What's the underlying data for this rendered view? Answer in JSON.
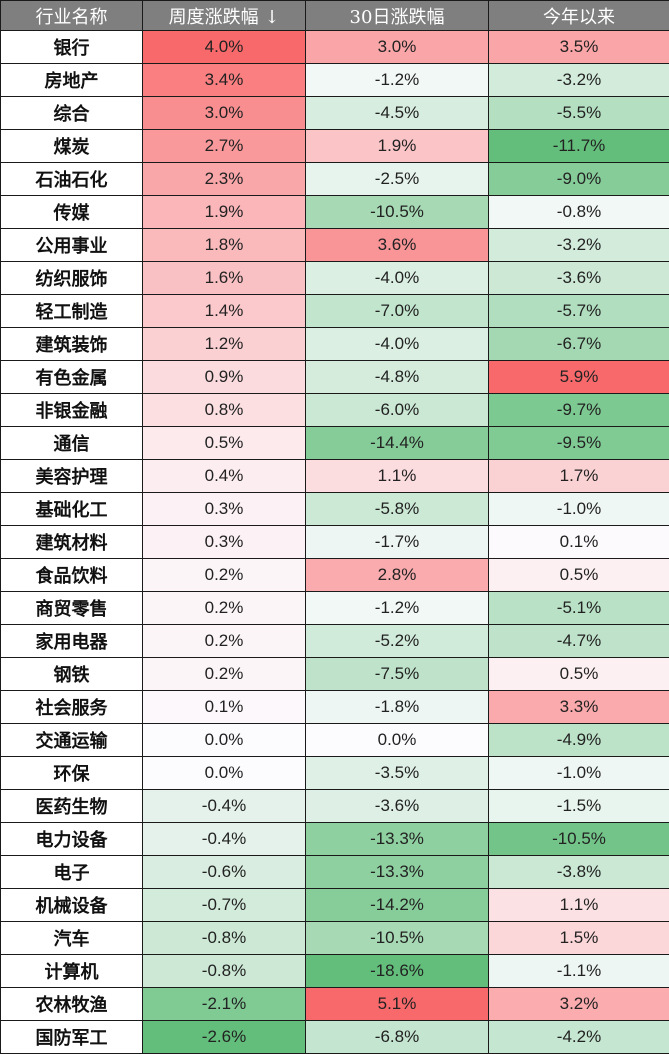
{
  "chart_data": {
    "type": "table",
    "title": "",
    "columns": [
      "行业名称",
      "周度涨跌幅 ↓",
      "30日涨跌幅",
      "今年以来"
    ],
    "rows": [
      {
        "name": "银行",
        "week": 4.0,
        "d30": 3.0,
        "ytd": 3.5
      },
      {
        "name": "房地产",
        "week": 3.4,
        "d30": -1.2,
        "ytd": -3.2
      },
      {
        "name": "综合",
        "week": 3.0,
        "d30": -4.5,
        "ytd": -5.5
      },
      {
        "name": "煤炭",
        "week": 2.7,
        "d30": 1.9,
        "ytd": -11.7
      },
      {
        "name": "石油石化",
        "week": 2.3,
        "d30": -2.5,
        "ytd": -9.0
      },
      {
        "name": "传媒",
        "week": 1.9,
        "d30": -10.5,
        "ytd": -0.8
      },
      {
        "name": "公用事业",
        "week": 1.8,
        "d30": 3.6,
        "ytd": -3.2
      },
      {
        "name": "纺织服饰",
        "week": 1.6,
        "d30": -4.0,
        "ytd": -3.6
      },
      {
        "name": "轻工制造",
        "week": 1.4,
        "d30": -7.0,
        "ytd": -5.7
      },
      {
        "name": "建筑装饰",
        "week": 1.2,
        "d30": -4.0,
        "ytd": -6.7
      },
      {
        "name": "有色金属",
        "week": 0.9,
        "d30": -4.8,
        "ytd": 5.9
      },
      {
        "name": "非银金融",
        "week": 0.8,
        "d30": -6.0,
        "ytd": -9.7
      },
      {
        "name": "通信",
        "week": 0.5,
        "d30": -14.4,
        "ytd": -9.5
      },
      {
        "name": "美容护理",
        "week": 0.4,
        "d30": 1.1,
        "ytd": 1.7
      },
      {
        "name": "基础化工",
        "week": 0.3,
        "d30": -5.8,
        "ytd": -1.0
      },
      {
        "name": "建筑材料",
        "week": 0.3,
        "d30": -1.7,
        "ytd": 0.1
      },
      {
        "name": "食品饮料",
        "week": 0.2,
        "d30": 2.8,
        "ytd": 0.5
      },
      {
        "name": "商贸零售",
        "week": 0.2,
        "d30": -1.2,
        "ytd": -5.1
      },
      {
        "name": "家用电器",
        "week": 0.2,
        "d30": -5.2,
        "ytd": -4.7
      },
      {
        "name": "钢铁",
        "week": 0.2,
        "d30": -7.5,
        "ytd": 0.5
      },
      {
        "name": "社会服务",
        "week": 0.1,
        "d30": -1.8,
        "ytd": 3.3
      },
      {
        "name": "交通运输",
        "week": 0.0,
        "d30": 0.0,
        "ytd": -4.9
      },
      {
        "name": "环保",
        "week": 0.0,
        "d30": -3.5,
        "ytd": -1.0
      },
      {
        "name": "医药生物",
        "week": -0.4,
        "d30": -3.6,
        "ytd": -1.5
      },
      {
        "name": "电力设备",
        "week": -0.4,
        "d30": -13.3,
        "ytd": -10.5
      },
      {
        "name": "电子",
        "week": -0.6,
        "d30": -13.3,
        "ytd": -3.8
      },
      {
        "name": "机械设备",
        "week": -0.7,
        "d30": -14.2,
        "ytd": 1.1
      },
      {
        "name": "汽车",
        "week": -0.8,
        "d30": -10.5,
        "ytd": 1.5
      },
      {
        "name": "计算机",
        "week": -0.8,
        "d30": -18.6,
        "ytd": -1.1
      },
      {
        "name": "农林牧渔",
        "week": -2.1,
        "d30": 5.1,
        "ytd": 3.2
      },
      {
        "name": "国防军工",
        "week": -2.6,
        "d30": -6.8,
        "ytd": -4.2
      }
    ],
    "color_scale": {
      "high": "#F8696B",
      "mid": "#FCFCFF",
      "low": "#63BE7B"
    },
    "header_bg": "#7F7F7F",
    "unit": "%"
  }
}
